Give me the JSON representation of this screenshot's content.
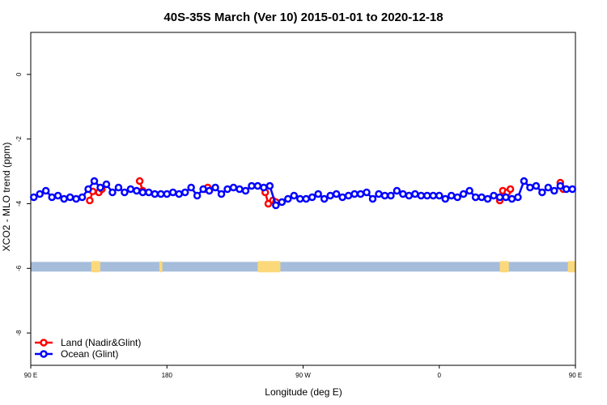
{
  "chart_data": {
    "type": "scatter",
    "title": "40S-35S March (Ver 10)   2015-01-01 to 2020-12-18",
    "xlabel": "Longitude (deg E)",
    "ylabel": "XCO2 - MLO trend (ppm)",
    "xlim": [
      90,
      450
    ],
    "ylim": [
      -9.0,
      1.3
    ],
    "x_ticks": [
      {
        "value": 90,
        "label": "90 E"
      },
      {
        "value": 180,
        "label": "180"
      },
      {
        "value": 270,
        "label": "90 W"
      },
      {
        "value": 360,
        "label": "0"
      },
      {
        "value": 450,
        "label": "90 E"
      },
      {
        "value": 540,
        "label": "180"
      }
    ],
    "y_ticks": [
      {
        "value": 0,
        "label": "0"
      },
      {
        "value": -2,
        "label": "-2"
      },
      {
        "value": -4,
        "label": "-4"
      },
      {
        "value": -6,
        "label": "-6"
      },
      {
        "value": -8,
        "label": "-8"
      }
    ],
    "legend_position": "bottom-left",
    "land_strip": {
      "y_top": -5.8,
      "y_bottom": -6.1,
      "ocean_color": "#a5bddb",
      "land_color": "#fbd97a",
      "land_segments": [
        [
          130,
          136
        ],
        [
          175,
          177
        ],
        [
          240,
          255
        ],
        [
          400,
          406
        ],
        [
          445,
          450
        ]
      ]
    },
    "series": [
      {
        "name": "Land (Nadir&Glint)",
        "color": "#ff0000",
        "x": [
          129,
          131,
          135,
          137,
          162,
          164,
          205,
          207,
          245,
          247,
          250,
          252,
          400,
          402,
          405,
          407,
          440,
          442
        ],
        "y": [
          -3.9,
          -3.62,
          -3.65,
          -3.55,
          -3.3,
          -3.6,
          -3.55,
          -3.5,
          -3.65,
          -4.0,
          -3.9,
          -3.95,
          -3.9,
          -3.6,
          -3.65,
          -3.55,
          -3.35,
          -3.55
        ]
      },
      {
        "name": "Ocean (Glint)",
        "color": "#0000ff",
        "x": [
          92,
          96,
          100,
          104,
          108,
          112,
          116,
          120,
          124,
          128,
          132,
          136,
          140,
          144,
          148,
          152,
          156,
          160,
          164,
          168,
          172,
          176,
          180,
          184,
          188,
          192,
          196,
          200,
          204,
          208,
          212,
          216,
          220,
          224,
          228,
          232,
          236,
          240,
          244,
          248,
          252,
          256,
          260,
          264,
          268,
          272,
          276,
          280,
          284,
          288,
          292,
          296,
          300,
          304,
          308,
          312,
          316,
          320,
          324,
          328,
          332,
          336,
          340,
          344,
          348,
          352,
          356,
          360,
          364,
          368,
          372,
          376,
          380,
          384,
          388,
          392,
          396,
          400,
          404,
          408,
          412,
          416,
          420,
          424,
          428,
          432,
          436,
          440,
          444,
          448
        ],
        "y": [
          -3.8,
          -3.7,
          -3.6,
          -3.8,
          -3.75,
          -3.85,
          -3.8,
          -3.85,
          -3.8,
          -3.55,
          -3.3,
          -3.5,
          -3.4,
          -3.65,
          -3.5,
          -3.65,
          -3.55,
          -3.6,
          -3.65,
          -3.65,
          -3.7,
          -3.7,
          -3.7,
          -3.65,
          -3.7,
          -3.65,
          -3.5,
          -3.75,
          -3.55,
          -3.6,
          -3.5,
          -3.7,
          -3.55,
          -3.5,
          -3.55,
          -3.6,
          -3.45,
          -3.45,
          -3.5,
          -3.45,
          -4.05,
          -3.95,
          -3.85,
          -3.75,
          -3.85,
          -3.85,
          -3.8,
          -3.7,
          -3.85,
          -3.75,
          -3.7,
          -3.8,
          -3.75,
          -3.7,
          -3.7,
          -3.65,
          -3.85,
          -3.7,
          -3.75,
          -3.75,
          -3.6,
          -3.7,
          -3.75,
          -3.7,
          -3.75,
          -3.75,
          -3.75,
          -3.75,
          -3.85,
          -3.75,
          -3.8,
          -3.7,
          -3.6,
          -3.8,
          -3.8,
          -3.85,
          -3.75,
          -3.8,
          -3.8,
          -3.85,
          -3.8,
          -3.3,
          -3.5,
          -3.45,
          -3.65,
          -3.5,
          -3.6,
          -3.45,
          -3.55,
          -3.55
        ]
      }
    ]
  }
}
